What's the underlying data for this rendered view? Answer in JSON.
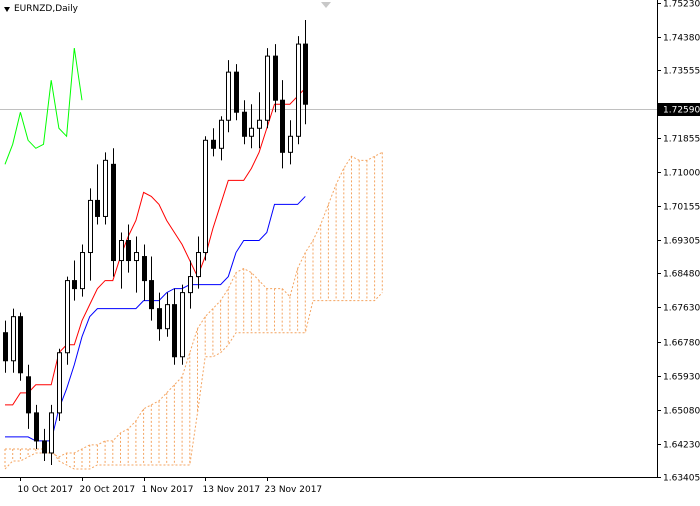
{
  "symbol_label": "EURNZD,Daily",
  "colors": {
    "background": "#ffffff",
    "axis": "#000000",
    "candle_outline": "#000000",
    "bull_body": "#ffffff",
    "bear_body": "#000000",
    "tenkan": "#ff0000",
    "kijun": "#0000ff",
    "chikou": "#00ff00",
    "cloud": "#f4a460",
    "price_line": "#c0c0c0",
    "price_badge_bg": "#000000",
    "price_badge_text": "#ffffff"
  },
  "chart_data": {
    "type": "candlestick",
    "title": "EURNZD,Daily",
    "y_ticks": [
      "1.75230",
      "1.74380",
      "1.73555",
      "1.72590",
      "1.71855",
      "1.71000",
      "1.70155",
      "1.69305",
      "1.68480",
      "1.67630",
      "1.66780",
      "1.65930",
      "1.65080",
      "1.64230",
      "1.63405"
    ],
    "ylim": [
      1.634,
      1.753
    ],
    "current_price": "1.72590",
    "current_price_value": 1.7259,
    "x_ticks": [
      {
        "label": "10 Oct 2017",
        "index": 2
      },
      {
        "label": "20 Oct 2017",
        "index": 10
      },
      {
        "label": "1 Nov 2017",
        "index": 18
      },
      {
        "label": "13 Nov 2017",
        "index": 26
      },
      {
        "label": "23 Nov 2017",
        "index": 34
      }
    ],
    "candles": [
      [
        1.67,
        1.673,
        1.66,
        1.663
      ],
      [
        1.663,
        1.676,
        1.66,
        1.674
      ],
      [
        1.674,
        1.675,
        1.658,
        1.66
      ],
      [
        1.659,
        1.662,
        1.646,
        1.65
      ],
      [
        1.65,
        1.652,
        1.641,
        1.643
      ],
      [
        1.643,
        1.646,
        1.638,
        1.64
      ],
      [
        1.64,
        1.652,
        1.637,
        1.65
      ],
      [
        1.65,
        1.666,
        1.648,
        1.665
      ],
      [
        1.665,
        1.684,
        1.662,
        1.683
      ],
      [
        1.683,
        1.688,
        1.678,
        1.681
      ],
      [
        1.681,
        1.692,
        1.679,
        1.69
      ],
      [
        1.69,
        1.706,
        1.683,
        1.703
      ],
      [
        1.703,
        1.712,
        1.697,
        1.699
      ],
      [
        1.699,
        1.715,
        1.697,
        1.713
      ],
      [
        1.712,
        1.716,
        1.684,
        1.688
      ],
      [
        1.688,
        1.695,
        1.681,
        1.693
      ],
      [
        1.693,
        1.697,
        1.685,
        1.688
      ],
      [
        1.688,
        1.694,
        1.68,
        1.69
      ],
      [
        1.689,
        1.692,
        1.678,
        1.683
      ],
      [
        1.683,
        1.689,
        1.673,
        1.676
      ],
      [
        1.676,
        1.68,
        1.668,
        1.671
      ],
      [
        1.671,
        1.68,
        1.669,
        1.677
      ],
      [
        1.677,
        1.681,
        1.662,
        1.664
      ],
      [
        1.664,
        1.682,
        1.662,
        1.68
      ],
      [
        1.68,
        1.688,
        1.676,
        1.684
      ],
      [
        1.684,
        1.694,
        1.681,
        1.69
      ],
      [
        1.69,
        1.719,
        1.688,
        1.718
      ],
      [
        1.718,
        1.721,
        1.714,
        1.716
      ],
      [
        1.716,
        1.724,
        1.713,
        1.723
      ],
      [
        1.723,
        1.738,
        1.72,
        1.735
      ],
      [
        1.735,
        1.737,
        1.723,
        1.725
      ],
      [
        1.725,
        1.728,
        1.717,
        1.719
      ],
      [
        1.719,
        1.727,
        1.716,
        1.721
      ],
      [
        1.721,
        1.73,
        1.716,
        1.723
      ],
      [
        1.723,
        1.741,
        1.721,
        1.739
      ],
      [
        1.739,
        1.742,
        1.725,
        1.728
      ],
      [
        1.728,
        1.733,
        1.711,
        1.715
      ],
      [
        1.715,
        1.723,
        1.712,
        1.719
      ],
      [
        1.719,
        1.744,
        1.717,
        1.742
      ],
      [
        1.742,
        1.748,
        1.722,
        1.727
      ]
    ],
    "tenkan_sen": [
      1.652,
      1.652,
      1.655,
      1.655,
      1.657,
      1.657,
      1.657,
      1.665,
      1.667,
      1.667,
      1.673,
      1.677,
      1.681,
      1.683,
      1.683,
      1.689,
      1.694,
      1.698,
      1.705,
      1.704,
      1.702,
      1.698,
      1.695,
      1.692,
      1.688,
      1.684,
      1.689,
      1.696,
      1.702,
      1.708,
      1.708,
      1.708,
      1.711,
      1.715,
      1.721,
      1.727,
      1.727,
      1.727,
      1.729,
      1.731
    ],
    "kijun_sen": [
      1.644,
      1.644,
      1.644,
      1.644,
      1.643,
      1.643,
      1.643,
      1.651,
      1.656,
      1.662,
      1.669,
      1.674,
      1.676,
      1.676,
      1.676,
      1.676,
      1.676,
      1.676,
      1.678,
      1.678,
      1.678,
      1.68,
      1.681,
      1.681,
      1.682,
      1.682,
      1.682,
      1.682,
      1.682,
      1.684,
      1.69,
      1.693,
      1.693,
      1.693,
      1.695,
      1.702,
      1.702,
      1.702,
      1.702,
      1.704
    ],
    "chikou_span": [
      1.712,
      1.717,
      1.725,
      1.718,
      1.716,
      1.717,
      1.733,
      1.721,
      1.719,
      1.741,
      1.728
    ],
    "senkou_a": [
      1.636,
      1.638,
      1.638,
      1.639,
      1.64,
      1.64,
      1.64,
      1.639,
      1.64,
      1.64,
      1.641,
      1.642,
      1.642,
      1.643,
      1.643,
      1.645,
      1.646,
      1.648,
      1.651,
      1.652,
      1.653,
      1.655,
      1.657,
      1.659,
      1.665,
      1.671,
      1.674,
      1.676,
      1.678,
      1.681,
      1.685,
      1.686,
      1.685,
      1.683,
      1.681,
      1.681,
      1.681,
      1.679,
      1.686,
      1.69,
      1.693,
      1.697,
      1.702,
      1.707,
      1.711,
      1.714,
      1.713,
      1.713,
      1.714,
      1.715
    ],
    "senkou_b": [
      1.641,
      1.641,
      1.641,
      1.641,
      1.641,
      1.641,
      1.641,
      1.638,
      1.637,
      1.636,
      1.636,
      1.636,
      1.637,
      1.637,
      1.637,
      1.637,
      1.637,
      1.637,
      1.637,
      1.637,
      1.637,
      1.637,
      1.637,
      1.637,
      1.637,
      1.65,
      1.664,
      1.664,
      1.665,
      1.667,
      1.67,
      1.67,
      1.67,
      1.67,
      1.67,
      1.67,
      1.67,
      1.67,
      1.67,
      1.67,
      1.678,
      1.678,
      1.678,
      1.678,
      1.678,
      1.678,
      1.678,
      1.678,
      1.678,
      1.68
    ]
  }
}
